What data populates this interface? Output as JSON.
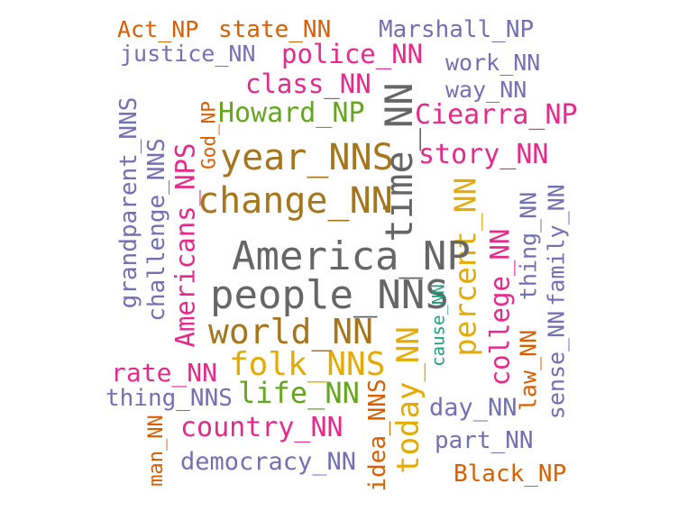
{
  "palette": {
    "orange": "#d95f02",
    "purple": "#7570b3",
    "magenta": "#e7298a",
    "green": "#66a61e",
    "gold": "#e6ab02",
    "brown": "#a6761d",
    "gray": "#666666",
    "teal": "#1b9e77"
  },
  "words": [
    {
      "text": "Act_NP",
      "color": "orange"
    },
    {
      "text": "state_NN",
      "color": "orange"
    },
    {
      "text": "Marshall_NP",
      "color": "purple"
    },
    {
      "text": "justice_NN",
      "color": "purple"
    },
    {
      "text": "police_NN",
      "color": "magenta"
    },
    {
      "text": "work_NN",
      "color": "purple"
    },
    {
      "text": "class_NN",
      "color": "magenta"
    },
    {
      "text": "way_NN",
      "color": "purple"
    },
    {
      "text": "Howard_NP",
      "color": "green"
    },
    {
      "text": "Ciearra_NP",
      "color": "magenta"
    },
    {
      "text": "God_NP",
      "color": "orange"
    },
    {
      "text": "time_NN",
      "color": "gray"
    },
    {
      "text": "grandparent_NNS",
      "color": "purple"
    },
    {
      "text": "challenge_NNS",
      "color": "purple"
    },
    {
      "text": "Americans_NPS",
      "color": "magenta"
    },
    {
      "text": "year_NNS",
      "color": "brown"
    },
    {
      "text": "story_NN",
      "color": "magenta"
    },
    {
      "text": "change_NN",
      "color": "brown"
    },
    {
      "text": "percent_NN",
      "color": "gold"
    },
    {
      "text": "thing_NN",
      "color": "purple"
    },
    {
      "text": "family_NN",
      "color": "purple"
    },
    {
      "text": "college_NN",
      "color": "magenta"
    },
    {
      "text": "America_NP",
      "color": "gray"
    },
    {
      "text": "people_NNS",
      "color": "gray"
    },
    {
      "text": "cause_NN",
      "color": "teal"
    },
    {
      "text": "world_NN",
      "color": "brown"
    },
    {
      "text": "law_NN",
      "color": "orange"
    },
    {
      "text": "sense_NN",
      "color": "purple"
    },
    {
      "text": "folk_NNS",
      "color": "gold"
    },
    {
      "text": "rate_NN",
      "color": "magenta"
    },
    {
      "text": "today_NN",
      "color": "gold"
    },
    {
      "text": "thing_NNS",
      "color": "purple"
    },
    {
      "text": "life_NN",
      "color": "green"
    },
    {
      "text": "idea_NNS",
      "color": "orange"
    },
    {
      "text": "day_NN",
      "color": "purple"
    },
    {
      "text": "man_NN",
      "color": "orange"
    },
    {
      "text": "country_NN",
      "color": "magenta"
    },
    {
      "text": "part_NN",
      "color": "purple"
    },
    {
      "text": "democracy_NN",
      "color": "purple"
    },
    {
      "text": "Black_NP",
      "color": "orange"
    }
  ]
}
